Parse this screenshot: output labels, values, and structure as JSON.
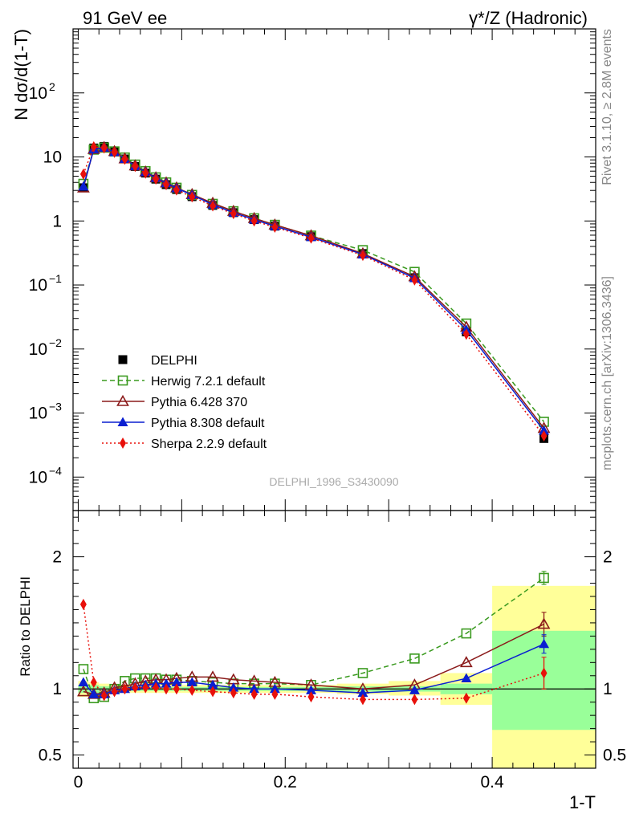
{
  "chart_data": {
    "type": "scatter",
    "header_left": "91 GeV ee",
    "header_right": "γ*/Z (Hadronic)",
    "analysis_label": "DELPHI_1996_S3430090",
    "side_text_top": "Rivet 3.1.10, ≥ 2.8M events",
    "side_text_bottom": "mcplots.cern.ch [arXiv:1306.3436]",
    "xlabel": "1-T",
    "xlim": [
      -0.005,
      0.5
    ],
    "xticks": [
      "0",
      "0.2",
      "0.4"
    ],
    "xtick_values": [
      0,
      0.2,
      0.4
    ],
    "top_panel": {
      "ylabel": "N dσ/d(1-T)",
      "yscale": "log",
      "ylim": [
        3e-05,
        1000
      ],
      "yticks": [
        {
          "value": 0.0001,
          "mantissa": "10",
          "exp": "−4"
        },
        {
          "value": 0.001,
          "mantissa": "10",
          "exp": "−3"
        },
        {
          "value": 0.01,
          "mantissa": "10",
          "exp": "−2"
        },
        {
          "value": 0.1,
          "mantissa": "10",
          "exp": "−1"
        },
        {
          "value": 1,
          "mantissa": "1",
          "exp": ""
        },
        {
          "value": 10,
          "mantissa": "10",
          "exp": ""
        },
        {
          "value": 100,
          "mantissa": "10",
          "exp": "2"
        }
      ]
    },
    "ratio_panel": {
      "ylabel": "Ratio to DELPHI",
      "ylim": [
        0.4,
        2.35
      ],
      "yticks": [
        {
          "value": 0.5,
          "label": "0.5"
        },
        {
          "value": 1,
          "label": "1"
        },
        {
          "value": 2,
          "label": "2"
        }
      ],
      "bands": [
        {
          "x0": 0.0,
          "x1": 0.01,
          "yellow": [
            0.94,
            1.06
          ],
          "green": [
            0.97,
            1.03
          ]
        },
        {
          "x0": 0.01,
          "x1": 0.02,
          "yellow": [
            0.95,
            1.05
          ],
          "green": [
            0.97,
            1.03
          ]
        },
        {
          "x0": 0.02,
          "x1": 0.03,
          "yellow": [
            0.96,
            1.04
          ],
          "green": [
            0.98,
            1.02
          ]
        },
        {
          "x0": 0.03,
          "x1": 0.1,
          "yellow": [
            0.97,
            1.03
          ],
          "green": [
            0.985,
            1.015
          ]
        },
        {
          "x0": 0.1,
          "x1": 0.2,
          "yellow": [
            0.97,
            1.03
          ],
          "green": [
            0.985,
            1.015
          ]
        },
        {
          "x0": 0.2,
          "x1": 0.25,
          "yellow": [
            0.97,
            1.03
          ],
          "green": [
            0.985,
            1.015
          ]
        },
        {
          "x0": 0.25,
          "x1": 0.3,
          "yellow": [
            0.96,
            1.04
          ],
          "green": [
            0.98,
            1.02
          ]
        },
        {
          "x0": 0.3,
          "x1": 0.35,
          "yellow": [
            0.95,
            1.06
          ],
          "green": [
            0.98,
            1.02
          ]
        },
        {
          "x0": 0.35,
          "x1": 0.4,
          "yellow": [
            0.88,
            1.12
          ],
          "green": [
            0.96,
            1.04
          ]
        },
        {
          "x0": 0.4,
          "x1": 0.5,
          "yellow": [
            0.4,
            1.78
          ],
          "green": [
            0.69,
            1.44
          ]
        }
      ]
    },
    "x": [
      0.005,
      0.015,
      0.025,
      0.035,
      0.045,
      0.055,
      0.065,
      0.075,
      0.085,
      0.095,
      0.11,
      0.13,
      0.15,
      0.17,
      0.19,
      0.225,
      0.275,
      0.325,
      0.375,
      0.45
    ],
    "series": [
      {
        "name": "DELPHI",
        "color": "#000000",
        "marker": "square-filled",
        "line": "none",
        "values": [
          3.3,
          13.8,
          14.6,
          12.0,
          9.3,
          7.1,
          5.6,
          4.5,
          3.7,
          3.1,
          2.4,
          1.75,
          1.35,
          1.05,
          0.83,
          0.57,
          0.31,
          0.13,
          0.0185,
          0.0004
        ]
      },
      {
        "name": "Herwig 7.2.1 default",
        "color": "#3a9a1f",
        "marker": "square-open",
        "line": "dashed",
        "values": [
          3.8,
          13.0,
          14.0,
          12.2,
          9.8,
          7.6,
          6.0,
          4.8,
          4.0,
          3.3,
          2.55,
          1.85,
          1.42,
          1.1,
          0.87,
          0.59,
          0.35,
          0.16,
          0.025,
          0.00073
        ],
        "ratio": [
          1.15,
          0.93,
          0.94,
          1.0,
          1.06,
          1.08,
          1.08,
          1.08,
          1.07,
          1.07,
          1.06,
          1.05,
          1.04,
          1.04,
          1.04,
          1.03,
          1.12,
          1.23,
          1.42,
          1.84
        ],
        "ratio_err": [
          0,
          0,
          0,
          0,
          0,
          0,
          0,
          0,
          0,
          0,
          0,
          0,
          0,
          0,
          0,
          0,
          0,
          0,
          0,
          0.05
        ]
      },
      {
        "name": "Pythia 6.428 370",
        "color": "#8b1a1a",
        "marker": "triangle-open",
        "line": "solid",
        "values": [
          3.3,
          13.2,
          14.1,
          12.2,
          9.4,
          7.3,
          5.85,
          4.75,
          3.95,
          3.3,
          2.6,
          1.9,
          1.42,
          1.1,
          0.87,
          0.59,
          0.31,
          0.135,
          0.022,
          0.00058
        ],
        "ratio": [
          0.98,
          0.96,
          0.97,
          1.01,
          1.02,
          1.04,
          1.06,
          1.07,
          1.07,
          1.08,
          1.09,
          1.09,
          1.07,
          1.06,
          1.05,
          1.03,
          1.0,
          1.03,
          1.2,
          1.49
        ],
        "ratio_err": [
          0,
          0,
          0,
          0,
          0,
          0,
          0,
          0,
          0,
          0,
          0,
          0,
          0,
          0,
          0,
          0,
          0,
          0,
          0,
          0.09
        ]
      },
      {
        "name": "Pythia 8.308 default",
        "color": "#0a1fd1",
        "marker": "triangle-filled",
        "line": "solid",
        "values": [
          3.45,
          13.2,
          14.0,
          11.9,
          9.3,
          7.2,
          5.8,
          4.7,
          3.9,
          3.25,
          2.55,
          1.8,
          1.35,
          1.05,
          0.83,
          0.56,
          0.3,
          0.128,
          0.02,
          0.00053
        ],
        "ratio": [
          1.05,
          0.96,
          0.96,
          0.99,
          1.0,
          1.02,
          1.03,
          1.04,
          1.04,
          1.05,
          1.05,
          1.03,
          1.01,
          1.0,
          1.0,
          0.99,
          0.97,
          0.99,
          1.08,
          1.34
        ],
        "ratio_err": [
          0,
          0,
          0,
          0,
          0,
          0,
          0,
          0,
          0,
          0,
          0,
          0,
          0,
          0,
          0,
          0,
          0,
          0,
          0,
          0.07
        ]
      },
      {
        "name": "Sherpa 2.2.9 default",
        "color": "#e8100a",
        "marker": "diamond-filled",
        "line": "dotted",
        "values": [
          5.4,
          14.4,
          13.8,
          11.8,
          9.2,
          7.1,
          5.6,
          4.5,
          3.7,
          3.05,
          2.38,
          1.72,
          1.3,
          1.0,
          0.8,
          0.54,
          0.29,
          0.12,
          0.017,
          0.00044
        ],
        "ratio": [
          1.64,
          1.05,
          0.95,
          0.98,
          1.0,
          1.01,
          1.01,
          1.01,
          1.0,
          1.0,
          0.99,
          0.98,
          0.97,
          0.96,
          0.96,
          0.94,
          0.92,
          0.92,
          0.93,
          1.12
        ],
        "ratio_err": [
          0,
          0,
          0,
          0,
          0,
          0,
          0,
          0,
          0,
          0,
          0,
          0,
          0,
          0,
          0,
          0,
          0,
          0,
          0,
          0.12
        ]
      }
    ]
  }
}
